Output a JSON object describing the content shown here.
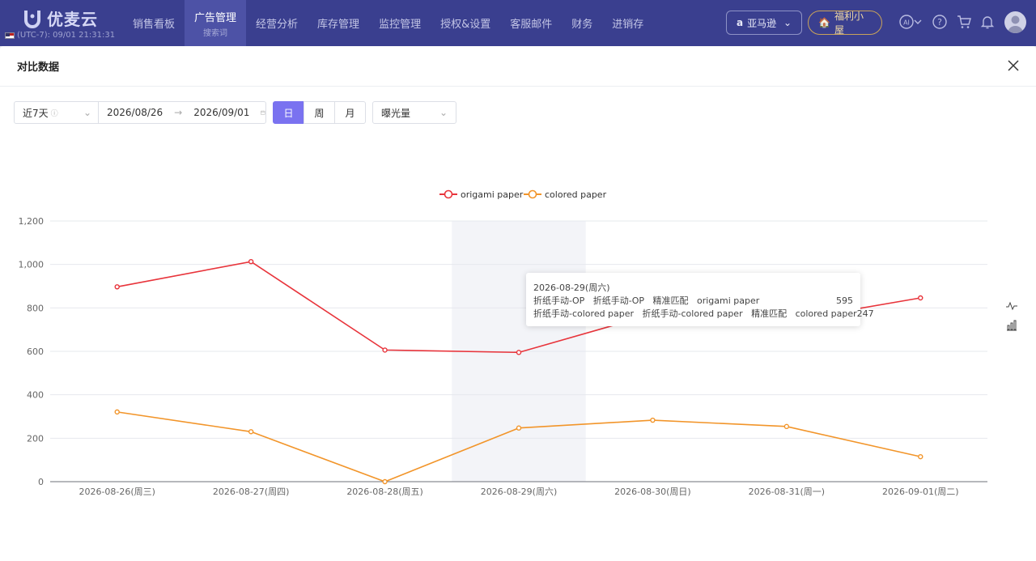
{
  "topbar": {
    "brand": "优麦云",
    "clock": "(UTC-7): 09/01 21:31:31",
    "nav": [
      {
        "label": "销售看板",
        "sub": ""
      },
      {
        "label": "广告管理",
        "sub": "搜索词"
      },
      {
        "label": "经营分析",
        "sub": ""
      },
      {
        "label": "库存管理",
        "sub": ""
      },
      {
        "label": "监控管理",
        "sub": ""
      },
      {
        "label": "授权&设置",
        "sub": ""
      },
      {
        "label": "客服邮件",
        "sub": ""
      },
      {
        "label": "财务",
        "sub": ""
      },
      {
        "label": "进销存",
        "sub": ""
      }
    ],
    "marketplace": "亚马逊",
    "welfare": "福利小屋"
  },
  "modal": {
    "title": "对比数据"
  },
  "filters": {
    "period": "近7天",
    "start_date": "2026/08/26",
    "end_date": "2026/09/01",
    "granularity": [
      "日",
      "周",
      "月"
    ],
    "granularity_selected": "日",
    "metric": "曝光量"
  },
  "chart_data": {
    "type": "line",
    "categories": [
      "2026-08-26(周三)",
      "2026-08-27(周四)",
      "2026-08-28(周五)",
      "2026-08-29(周六)",
      "2026-08-30(周日)",
      "2026-08-31(周一)",
      "2026-09-01(周二)"
    ],
    "series": [
      {
        "name": "origami paper",
        "color": "#e8343b",
        "values": [
          897,
          1013,
          606,
          595,
          771,
          740,
          846
        ]
      },
      {
        "name": "colored paper",
        "color": "#f2952a",
        "values": [
          321,
          230,
          0,
          247,
          283,
          254,
          115
        ]
      }
    ],
    "y_ticks": [
      "0",
      "200",
      "400",
      "600",
      "800",
      "1,000",
      "1,200"
    ],
    "ylim": [
      0,
      1200
    ],
    "grid": true,
    "legend": "top-center",
    "highlighted_category": 3
  },
  "tooltip": {
    "title": "2026-08-29(周六)",
    "rows": [
      {
        "label": "折纸手动-OP   折纸手动-OP   精准匹配   origami paper",
        "value": "595"
      },
      {
        "label": "折纸手动-colored paper   折纸手动-colored paper   精准匹配   colored paper",
        "value": "247"
      }
    ]
  }
}
